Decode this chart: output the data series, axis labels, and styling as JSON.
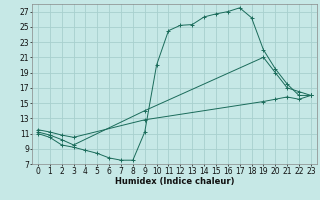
{
  "xlabel": "Humidex (Indice chaleur)",
  "bg_color": "#c6e8e6",
  "grid_color": "#a8d0ce",
  "line_color": "#1a6b5a",
  "xlim": [
    -0.5,
    23.5
  ],
  "ylim": [
    7,
    28
  ],
  "xticks": [
    0,
    1,
    2,
    3,
    4,
    5,
    6,
    7,
    8,
    9,
    10,
    11,
    12,
    13,
    14,
    15,
    16,
    17,
    18,
    19,
    20,
    21,
    22,
    23
  ],
  "yticks": [
    7,
    9,
    11,
    13,
    15,
    17,
    19,
    21,
    23,
    25,
    27
  ],
  "line1_x": [
    0,
    1,
    2,
    3,
    4,
    5,
    6,
    7,
    8,
    9,
    10,
    11,
    12,
    13,
    14,
    15,
    16,
    17,
    18,
    19,
    20,
    21,
    22,
    23
  ],
  "line1_y": [
    11.0,
    10.5,
    9.5,
    9.2,
    8.8,
    8.4,
    7.8,
    7.5,
    7.5,
    11.2,
    20.0,
    24.5,
    25.2,
    25.3,
    26.3,
    26.7,
    27.0,
    27.5,
    26.2,
    22.0,
    19.5,
    17.5,
    16.0,
    16.0
  ],
  "line2_x": [
    0,
    1,
    2,
    3,
    9,
    19,
    20,
    21,
    22,
    23
  ],
  "line2_y": [
    11.2,
    10.8,
    10.2,
    9.5,
    14.0,
    21.0,
    19.0,
    17.0,
    16.5,
    16.0
  ],
  "line3_x": [
    0,
    1,
    2,
    3,
    9,
    19,
    20,
    21,
    22,
    23
  ],
  "line3_y": [
    11.5,
    11.2,
    10.8,
    10.5,
    12.8,
    15.2,
    15.5,
    15.8,
    15.5,
    16.0
  ],
  "xlabel_fontsize": 6.0,
  "tick_fontsize": 5.5,
  "xlabel_fontweight": "bold"
}
